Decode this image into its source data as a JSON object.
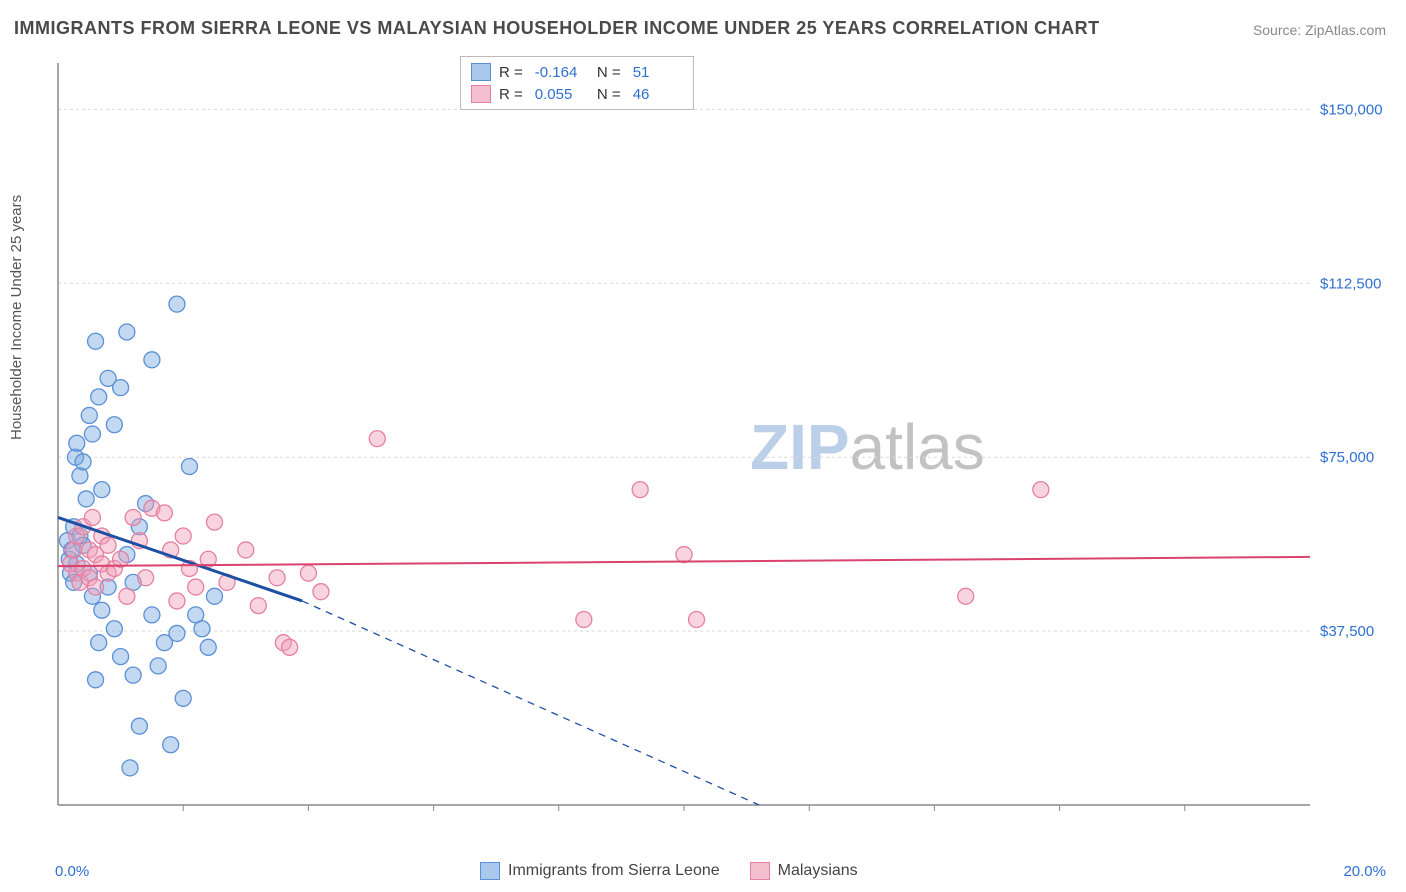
{
  "title": "IMMIGRANTS FROM SIERRA LEONE VS MALAYSIAN HOUSEHOLDER INCOME UNDER 25 YEARS CORRELATION CHART",
  "source": "Source: ZipAtlas.com",
  "ylabel": "Householder Income Under 25 years",
  "watermark": {
    "part1": "ZIP",
    "part2": "atlas"
  },
  "chart": {
    "type": "scatter",
    "background_color": "#ffffff",
    "plot_border_color": "#888888",
    "grid_color": "#d9d9d9",
    "xlim": [
      0,
      20
    ],
    "ylim": [
      0,
      160000
    ],
    "xtick_minor": [
      2,
      4,
      6,
      8,
      10,
      12,
      14,
      16,
      18
    ],
    "x_labels": {
      "min": "0.0%",
      "max": "20.0%"
    },
    "yticks": [
      {
        "v": 37500,
        "label": "$37,500"
      },
      {
        "v": 75000,
        "label": "$75,000"
      },
      {
        "v": 112500,
        "label": "$112,500"
      },
      {
        "v": 150000,
        "label": "$150,000"
      }
    ],
    "marker_radius": 8,
    "marker_stroke_width": 1.3,
    "series": [
      {
        "name": "Immigrants from Sierra Leone",
        "color_fill": "rgba(120,170,225,0.45)",
        "color_stroke": "#5b8fd6",
        "swatch_fill": "#a9c8ec",
        "swatch_border": "#5b8fd6",
        "R": "-0.164",
        "N": "51",
        "regression": {
          "color": "#1d4fa3",
          "solid_width": 3,
          "dash_width": 1.3,
          "x1": 0,
          "y1": 62000,
          "xm": 3.9,
          "ym": 44000,
          "x2": 11.2,
          "y2": 0
        },
        "points": [
          [
            0.15,
            57000
          ],
          [
            0.18,
            53000
          ],
          [
            0.2,
            50000
          ],
          [
            0.22,
            55000
          ],
          [
            0.25,
            60000
          ],
          [
            0.25,
            48000
          ],
          [
            0.28,
            75000
          ],
          [
            0.3,
            78000
          ],
          [
            0.3,
            52000
          ],
          [
            0.35,
            58000
          ],
          [
            0.35,
            71000
          ],
          [
            0.4,
            74000
          ],
          [
            0.4,
            56000
          ],
          [
            0.45,
            66000
          ],
          [
            0.5,
            84000
          ],
          [
            0.5,
            50000
          ],
          [
            0.55,
            80000
          ],
          [
            0.55,
            45000
          ],
          [
            0.6,
            100000
          ],
          [
            0.6,
            27000
          ],
          [
            0.65,
            88000
          ],
          [
            0.65,
            35000
          ],
          [
            0.7,
            68000
          ],
          [
            0.7,
            42000
          ],
          [
            0.8,
            92000
          ],
          [
            0.8,
            47000
          ],
          [
            0.9,
            82000
          ],
          [
            0.9,
            38000
          ],
          [
            1.0,
            90000
          ],
          [
            1.0,
            32000
          ],
          [
            1.1,
            54000
          ],
          [
            1.1,
            102000
          ],
          [
            1.2,
            48000
          ],
          [
            1.2,
            28000
          ],
          [
            1.3,
            60000
          ],
          [
            1.4,
            65000
          ],
          [
            1.5,
            41000
          ],
          [
            1.5,
            96000
          ],
          [
            1.6,
            30000
          ],
          [
            1.7,
            35000
          ],
          [
            1.8,
            13000
          ],
          [
            1.9,
            108000
          ],
          [
            1.9,
            37000
          ],
          [
            2.0,
            23000
          ],
          [
            2.1,
            73000
          ],
          [
            2.2,
            41000
          ],
          [
            2.3,
            38000
          ],
          [
            2.4,
            34000
          ],
          [
            2.5,
            45000
          ],
          [
            1.15,
            8000
          ],
          [
            1.3,
            17000
          ]
        ]
      },
      {
        "name": "Malaysians",
        "color_fill": "rgba(240,160,185,0.45)",
        "color_stroke": "#e57fa3",
        "swatch_fill": "#f4c0d0",
        "swatch_border": "#e57fa3",
        "R": "0.055",
        "N": "46",
        "regression": {
          "color": "#d9436e",
          "solid_width": 2,
          "x1": 0,
          "y1": 51500,
          "x2": 20,
          "y2": 53500
        },
        "points": [
          [
            0.2,
            52000
          ],
          [
            0.25,
            55000
          ],
          [
            0.3,
            50000
          ],
          [
            0.3,
            58000
          ],
          [
            0.35,
            48000
          ],
          [
            0.4,
            60000
          ],
          [
            0.4,
            51000
          ],
          [
            0.5,
            49000
          ],
          [
            0.5,
            55000
          ],
          [
            0.55,
            62000
          ],
          [
            0.6,
            54000
          ],
          [
            0.6,
            47000
          ],
          [
            0.7,
            52000
          ],
          [
            0.7,
            58000
          ],
          [
            0.8,
            56000
          ],
          [
            0.8,
            50000
          ],
          [
            0.9,
            51000
          ],
          [
            1.0,
            53000
          ],
          [
            1.1,
            45000
          ],
          [
            1.2,
            62000
          ],
          [
            1.3,
            57000
          ],
          [
            1.4,
            49000
          ],
          [
            1.5,
            64000
          ],
          [
            1.7,
            63000
          ],
          [
            1.8,
            55000
          ],
          [
            1.9,
            44000
          ],
          [
            2.0,
            58000
          ],
          [
            2.1,
            51000
          ],
          [
            2.2,
            47000
          ],
          [
            2.4,
            53000
          ],
          [
            2.5,
            61000
          ],
          [
            2.7,
            48000
          ],
          [
            3.0,
            55000
          ],
          [
            3.2,
            43000
          ],
          [
            3.5,
            49000
          ],
          [
            3.6,
            35000
          ],
          [
            3.7,
            34000
          ],
          [
            4.0,
            50000
          ],
          [
            4.2,
            46000
          ],
          [
            5.1,
            79000
          ],
          [
            8.4,
            40000
          ],
          [
            9.3,
            68000
          ],
          [
            10.0,
            54000
          ],
          [
            10.2,
            40000
          ],
          [
            14.5,
            45000
          ],
          [
            15.7,
            68000
          ]
        ]
      }
    ],
    "legend_bottom": [
      {
        "label": "Immigrants from Sierra Leone",
        "fill": "#a9c8ec",
        "border": "#5b8fd6"
      },
      {
        "label": "Malaysians",
        "fill": "#f4c0d0",
        "border": "#e57fa3"
      }
    ]
  }
}
